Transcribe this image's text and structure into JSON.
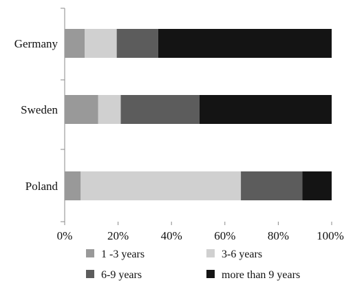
{
  "chart_data": {
    "type": "bar",
    "orientation": "horizontal",
    "stacked": true,
    "categories": [
      "Germany",
      "Sweden",
      "Poland"
    ],
    "series": [
      {
        "name": "1 -3 years",
        "color": "#999999",
        "values": [
          7.5,
          12.5,
          6
        ]
      },
      {
        "name": "3-6 years",
        "color": "#d0d0d0",
        "values": [
          12,
          8.5,
          60
        ]
      },
      {
        "name": "6-9 years",
        "color": "#5c5c5c",
        "values": [
          15.5,
          29.5,
          23
        ]
      },
      {
        "name": "more than 9 years",
        "color": "#141414",
        "values": [
          65,
          49.5,
          11
        ]
      }
    ],
    "xlim": [
      0,
      100
    ],
    "x_ticks": [
      "0%",
      "20%",
      "40%",
      "60%",
      "80%",
      "100%"
    ],
    "legend_position": "bottom",
    "grid": false
  }
}
